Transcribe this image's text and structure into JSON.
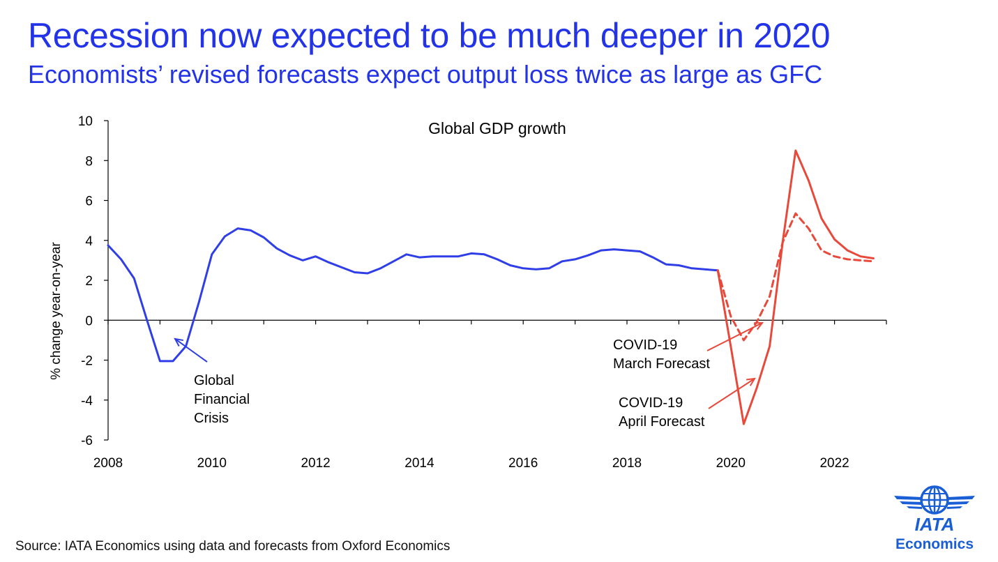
{
  "header": {
    "title": "Recession now expected to be much deeper in 2020",
    "subtitle": "Economists’ revised forecasts expect output loss twice as large as GFC"
  },
  "footer": {
    "source": "Source: IATA Economics using data and forecasts from Oxford Economics"
  },
  "logo": {
    "name": "IATA",
    "subtitle": "Economics",
    "icon": "globe-wings-icon",
    "color": "#1a5ed6"
  },
  "chart_data": {
    "type": "line",
    "title": "Global GDP growth",
    "xlabel": "",
    "ylabel": "% change year-on-year",
    "xlim": [
      2008,
      2023
    ],
    "ylim": [
      -6,
      10
    ],
    "x_ticks": [
      "2008",
      "2010",
      "2012",
      "2014",
      "2016",
      "2018",
      "2020",
      "2022"
    ],
    "y_ticks": [
      "10",
      "8",
      "6",
      "4",
      "2",
      "0",
      "-2",
      "-4",
      "-6"
    ],
    "grid": false,
    "series": [
      {
        "key": "history",
        "color": "#2f3ee6",
        "dash": false,
        "points": [
          [
            2008.0,
            3.75
          ],
          [
            2008.25,
            3.05
          ],
          [
            2008.5,
            2.1
          ],
          [
            2008.75,
            0.0
          ],
          [
            2009.0,
            -2.05
          ],
          [
            2009.25,
            -2.05
          ],
          [
            2009.5,
            -1.3
          ],
          [
            2009.75,
            0.9
          ],
          [
            2010.0,
            3.3
          ],
          [
            2010.25,
            4.2
          ],
          [
            2010.5,
            4.6
          ],
          [
            2010.75,
            4.5
          ],
          [
            2011.0,
            4.15
          ],
          [
            2011.25,
            3.6
          ],
          [
            2011.5,
            3.25
          ],
          [
            2011.75,
            3.0
          ],
          [
            2012.0,
            3.2
          ],
          [
            2012.25,
            2.9
          ],
          [
            2012.5,
            2.65
          ],
          [
            2012.75,
            2.4
          ],
          [
            2013.0,
            2.35
          ],
          [
            2013.25,
            2.6
          ],
          [
            2013.5,
            2.95
          ],
          [
            2013.75,
            3.3
          ],
          [
            2014.0,
            3.15
          ],
          [
            2014.25,
            3.2
          ],
          [
            2014.5,
            3.2
          ],
          [
            2014.75,
            3.2
          ],
          [
            2015.0,
            3.35
          ],
          [
            2015.25,
            3.3
          ],
          [
            2015.5,
            3.05
          ],
          [
            2015.75,
            2.75
          ],
          [
            2016.0,
            2.6
          ],
          [
            2016.25,
            2.55
          ],
          [
            2016.5,
            2.6
          ],
          [
            2016.75,
            2.95
          ],
          [
            2017.0,
            3.05
          ],
          [
            2017.25,
            3.25
          ],
          [
            2017.5,
            3.5
          ],
          [
            2017.75,
            3.55
          ],
          [
            2018.0,
            3.5
          ],
          [
            2018.25,
            3.45
          ],
          [
            2018.5,
            3.15
          ],
          [
            2018.75,
            2.8
          ],
          [
            2019.0,
            2.75
          ],
          [
            2019.25,
            2.6
          ],
          [
            2019.5,
            2.55
          ],
          [
            2019.75,
            2.5
          ]
        ]
      },
      {
        "key": "april-forecast",
        "color": "#e8493a",
        "dash": false,
        "points": [
          [
            2019.75,
            2.5
          ],
          [
            2020.0,
            -1.3
          ],
          [
            2020.25,
            -5.2
          ],
          [
            2020.5,
            -3.4
          ],
          [
            2020.75,
            -1.3
          ],
          [
            2021.0,
            3.9
          ],
          [
            2021.25,
            8.5
          ],
          [
            2021.5,
            7.0
          ],
          [
            2021.75,
            5.1
          ],
          [
            2022.0,
            4.05
          ],
          [
            2022.25,
            3.5
          ],
          [
            2022.5,
            3.2
          ],
          [
            2022.75,
            3.1
          ]
        ]
      },
      {
        "key": "march-forecast",
        "color": "#e8493a",
        "dash": true,
        "points": [
          [
            2019.75,
            2.5
          ],
          [
            2020.0,
            0.2
          ],
          [
            2020.25,
            -1.0
          ],
          [
            2020.5,
            -0.1
          ],
          [
            2020.75,
            1.2
          ],
          [
            2021.0,
            3.9
          ],
          [
            2021.25,
            5.35
          ],
          [
            2021.5,
            4.6
          ],
          [
            2021.75,
            3.5
          ],
          [
            2022.0,
            3.2
          ],
          [
            2022.25,
            3.05
          ],
          [
            2022.5,
            3.0
          ],
          [
            2022.75,
            2.95
          ]
        ]
      }
    ],
    "annotations": [
      {
        "key": "gfc",
        "lines": [
          "Global",
          "Financial",
          "Crisis"
        ],
        "color": "#2f3ee6"
      },
      {
        "key": "march",
        "lines": [
          "COVID-19",
          "March Forecast"
        ],
        "color": "#e8493a"
      },
      {
        "key": "april",
        "lines": [
          "COVID-19",
          "April Forecast"
        ],
        "color": "#e8493a"
      }
    ]
  }
}
